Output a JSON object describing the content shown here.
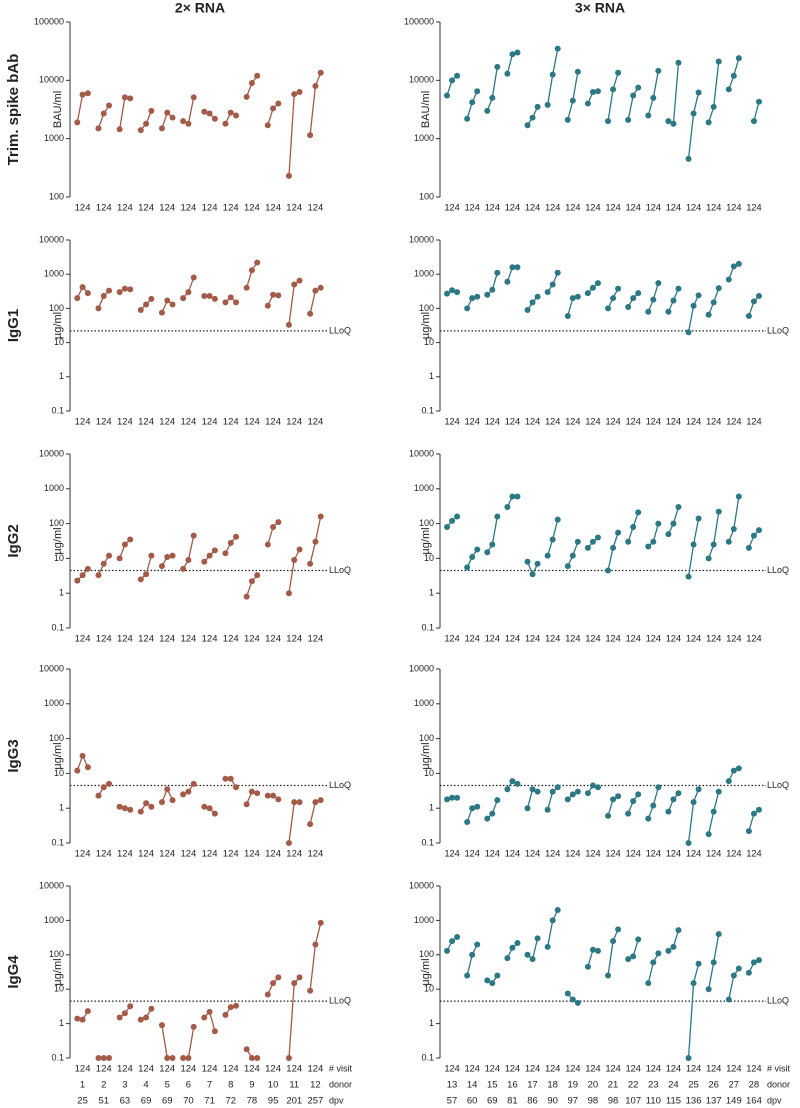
{
  "column_titles": [
    "2× RNA",
    "3× RNA"
  ],
  "row_titles": [
    "Trim. spike bAb",
    "IgG1",
    "IgG2",
    "IgG3",
    "IgG4"
  ],
  "visits": [
    1,
    2,
    4
  ],
  "footer_labels": {
    "visit": "# visit",
    "donor": "donor",
    "dpv": "dpv"
  },
  "groups": [
    {
      "donors": [
        1,
        2,
        3,
        4,
        5,
        6,
        7,
        8,
        9,
        10,
        11,
        12
      ],
      "dpv": [
        25,
        51,
        63,
        69,
        69,
        70,
        71,
        72,
        78,
        95,
        201,
        257
      ]
    },
    {
      "donors": [
        13,
        14,
        15,
        16,
        17,
        18,
        19,
        20,
        21,
        22,
        23,
        24,
        25,
        26,
        27,
        28
      ],
      "dpv": [
        57,
        60,
        69,
        81,
        86,
        90,
        97,
        98,
        98,
        107,
        110,
        115,
        136,
        137,
        149,
        164
      ]
    }
  ],
  "chart_data": [
    {
      "type": "line",
      "y_label": "BAU/ml",
      "log": true,
      "ylim": [
        100,
        100000
      ],
      "yticks": [
        100,
        1000,
        10000,
        100000
      ],
      "color": "#a35a47",
      "values": [
        [
          1900,
          5700,
          6000
        ],
        [
          1500,
          2700,
          3700
        ],
        [
          1450,
          5100,
          4900
        ],
        [
          1400,
          1800,
          3000
        ],
        [
          1500,
          2800,
          2300
        ],
        [
          2000,
          1800,
          5100
        ],
        [
          2900,
          2700,
          2200
        ],
        [
          1800,
          2800,
          2500
        ],
        [
          5200,
          9000,
          12000
        ],
        [
          1700,
          3300,
          4000
        ],
        [
          230,
          5800,
          6300
        ],
        [
          1150,
          8000,
          13500
        ]
      ]
    },
    {
      "type": "line",
      "y_label": "BAU/ml",
      "log": true,
      "ylim": [
        100,
        100000
      ],
      "yticks": [
        100,
        1000,
        10000,
        100000
      ],
      "color": "#2c7884",
      "values": [
        [
          5500,
          10000,
          12000
        ],
        [
          2200,
          4200,
          6500
        ],
        [
          3000,
          5000,
          17000
        ],
        [
          13000,
          28000,
          30000
        ],
        [
          1700,
          2300,
          3500
        ],
        [
          3800,
          12500,
          35000
        ],
        [
          2100,
          4500,
          14000
        ],
        [
          4000,
          6300,
          6500
        ],
        [
          2000,
          7000,
          13500
        ],
        [
          2100,
          5500,
          7500
        ],
        [
          2500,
          5000,
          14500
        ],
        [
          2000,
          1800,
          20000
        ],
        [
          450,
          2700,
          6200
        ],
        [
          1900,
          3500,
          21000
        ],
        [
          7000,
          12000,
          24000
        ],
        [
          null,
          2000,
          4300
        ]
      ]
    },
    {
      "type": "line",
      "y_label": "µg/ml",
      "log": true,
      "ylim": [
        0.1,
        10000
      ],
      "yticks": [
        0.1,
        1,
        10,
        100,
        1000,
        10000
      ],
      "color": "#a35a47",
      "lloq": {
        "value": 22,
        "label": "LLoQ"
      },
      "values": [
        [
          200,
          420,
          280
        ],
        [
          100,
          230,
          330
        ],
        [
          300,
          380,
          360
        ],
        [
          90,
          130,
          190
        ],
        [
          75,
          170,
          130
        ],
        [
          200,
          300,
          800
        ],
        [
          230,
          230,
          190
        ],
        [
          150,
          210,
          150
        ],
        [
          400,
          1300,
          2200
        ],
        [
          120,
          250,
          240
        ],
        [
          33,
          500,
          650
        ],
        [
          70,
          330,
          400
        ]
      ]
    },
    {
      "type": "line",
      "y_label": "µg/ml",
      "log": true,
      "ylim": [
        0.1,
        10000
      ],
      "yticks": [
        0.1,
        1,
        10,
        100,
        1000,
        10000
      ],
      "color": "#2c7884",
      "lloq": {
        "value": 22,
        "label": "LLoQ"
      },
      "values": [
        [
          270,
          340,
          300
        ],
        [
          100,
          200,
          220
        ],
        [
          250,
          350,
          1100
        ],
        [
          600,
          1600,
          1600
        ],
        [
          90,
          150,
          220
        ],
        [
          300,
          500,
          1100
        ],
        [
          60,
          200,
          220
        ],
        [
          280,
          400,
          550
        ],
        [
          100,
          200,
          380
        ],
        [
          110,
          200,
          280
        ],
        [
          80,
          180,
          550
        ],
        [
          80,
          170,
          380
        ],
        [
          20,
          120,
          240
        ],
        [
          65,
          150,
          390
        ],
        [
          700,
          1700,
          2000
        ],
        [
          60,
          160,
          230
        ]
      ]
    },
    {
      "type": "line",
      "y_label": "µg/ml",
      "log": true,
      "ylim": [
        0.1,
        10000
      ],
      "yticks": [
        0.1,
        1,
        10,
        100,
        1000,
        10000
      ],
      "color": "#a35a47",
      "lloq": {
        "value": 4.5,
        "label": "LLoQ"
      },
      "values": [
        [
          2.3,
          3.3,
          5
        ],
        [
          3.3,
          7,
          12
        ],
        [
          10,
          25,
          35
        ],
        [
          2.5,
          3.5,
          12
        ],
        [
          6,
          11,
          12
        ],
        [
          5,
          9,
          45
        ],
        [
          8,
          12,
          17
        ],
        [
          14,
          28,
          42
        ],
        [
          0.8,
          2.2,
          3.3
        ],
        [
          25,
          80,
          110
        ],
        [
          1,
          9,
          18
        ],
        [
          7,
          30,
          160
        ]
      ]
    },
    {
      "type": "line",
      "y_label": "µg/ml",
      "log": true,
      "ylim": [
        0.1,
        10000
      ],
      "yticks": [
        0.1,
        1,
        10,
        100,
        1000,
        10000
      ],
      "color": "#2c7884",
      "lloq": {
        "value": 4.5,
        "label": "LLoQ"
      },
      "values": [
        [
          80,
          120,
          160
        ],
        [
          5.5,
          11,
          18
        ],
        [
          15,
          25,
          160
        ],
        [
          300,
          600,
          600
        ],
        [
          8,
          3.5,
          7
        ],
        [
          12,
          35,
          130
        ],
        [
          6,
          12,
          30
        ],
        [
          20,
          30,
          40
        ],
        [
          4.5,
          20,
          55
        ],
        [
          30,
          80,
          210
        ],
        [
          22,
          30,
          100
        ],
        [
          50,
          100,
          300
        ],
        [
          3,
          25,
          140
        ],
        [
          10,
          25,
          220
        ],
        [
          30,
          70,
          600
        ],
        [
          20,
          45,
          65
        ]
      ]
    },
    {
      "type": "line",
      "y_label": "µg/ml",
      "log": true,
      "ylim": [
        0.1,
        10000
      ],
      "yticks": [
        0.1,
        1,
        10,
        100,
        1000,
        10000
      ],
      "color": "#a35a47",
      "lloq": {
        "value": 4.5,
        "label": "LLoQ"
      },
      "values": [
        [
          12,
          32,
          15
        ],
        [
          2.3,
          4,
          5
        ],
        [
          1.1,
          1,
          0.9
        ],
        [
          0.8,
          1.4,
          1.1
        ],
        [
          1.5,
          3.5,
          1.7
        ],
        [
          2.5,
          3,
          5
        ],
        [
          1.1,
          1,
          0.7
        ],
        [
          7,
          7,
          4
        ],
        [
          1.3,
          3,
          2.7
        ],
        [
          2.3,
          2.3,
          1.8
        ],
        [
          0.1,
          1.5,
          1.5
        ],
        [
          0.35,
          1.5,
          1.7
        ]
      ]
    },
    {
      "type": "line",
      "y_label": "µg/ml",
      "log": true,
      "ylim": [
        0.1,
        10000
      ],
      "yticks": [
        0.1,
        1,
        10,
        100,
        1000,
        10000
      ],
      "color": "#2c7884",
      "lloq": {
        "value": 4.5,
        "label": "LLoQ"
      },
      "values": [
        [
          1.8,
          2,
          2
        ],
        [
          0.4,
          1,
          1.1
        ],
        [
          0.5,
          0.7,
          1.7
        ],
        [
          3.5,
          6,
          5
        ],
        [
          1,
          3.5,
          3
        ],
        [
          0.9,
          3,
          4
        ],
        [
          1.8,
          2.5,
          3
        ],
        [
          2.7,
          4.5,
          4
        ],
        [
          0.6,
          1.8,
          2.2
        ],
        [
          0.7,
          1.6,
          2.5
        ],
        [
          0.5,
          1.2,
          4
        ],
        [
          0.8,
          1.8,
          2.7
        ],
        [
          0.1,
          1.5,
          3.5
        ],
        [
          0.18,
          0.8,
          3
        ],
        [
          6,
          12,
          14
        ],
        [
          0.22,
          0.7,
          0.9
        ]
      ]
    },
    {
      "type": "line",
      "y_label": "µg/ml",
      "log": true,
      "ylim": [
        0.1,
        10000
      ],
      "yticks": [
        0.1,
        1,
        10,
        100,
        1000,
        10000
      ],
      "color": "#a35a47",
      "lloq": {
        "value": 4.5,
        "label": "LLoQ"
      },
      "values": [
        [
          1.4,
          1.3,
          2.3
        ],
        [
          0.1,
          0.1,
          0.1
        ],
        [
          1.5,
          2,
          3.2
        ],
        [
          1.3,
          1.5,
          2.7
        ],
        [
          0.9,
          0.1,
          0.1
        ],
        [
          0.1,
          0.1,
          0.8
        ],
        [
          1.5,
          2.2,
          0.6
        ],
        [
          1.8,
          3,
          3.3
        ],
        [
          0.18,
          0.1,
          0.1
        ],
        [
          7,
          15,
          22
        ],
        [
          0.1,
          15,
          22
        ],
        [
          9,
          200,
          850
        ]
      ]
    },
    {
      "type": "line",
      "y_label": "µg/ml",
      "log": true,
      "ylim": [
        0.1,
        10000
      ],
      "yticks": [
        0.1,
        1,
        10,
        100,
        1000,
        10000
      ],
      "color": "#2c7884",
      "lloq": {
        "value": 4.5,
        "label": "LLoQ"
      },
      "values": [
        [
          130,
          250,
          330
        ],
        [
          25,
          100,
          200
        ],
        [
          18,
          15,
          25
        ],
        [
          80,
          160,
          220
        ],
        [
          100,
          75,
          300
        ],
        [
          170,
          1000,
          2000
        ],
        [
          7.5,
          5,
          4
        ],
        [
          45,
          140,
          130
        ],
        [
          25,
          250,
          550
        ],
        [
          75,
          90,
          280
        ],
        [
          15,
          60,
          110
        ],
        [
          130,
          170,
          520
        ],
        [
          0.1,
          15,
          55
        ],
        [
          10,
          60,
          400
        ],
        [
          5,
          25,
          40
        ],
        [
          30,
          60,
          70
        ]
      ]
    }
  ]
}
